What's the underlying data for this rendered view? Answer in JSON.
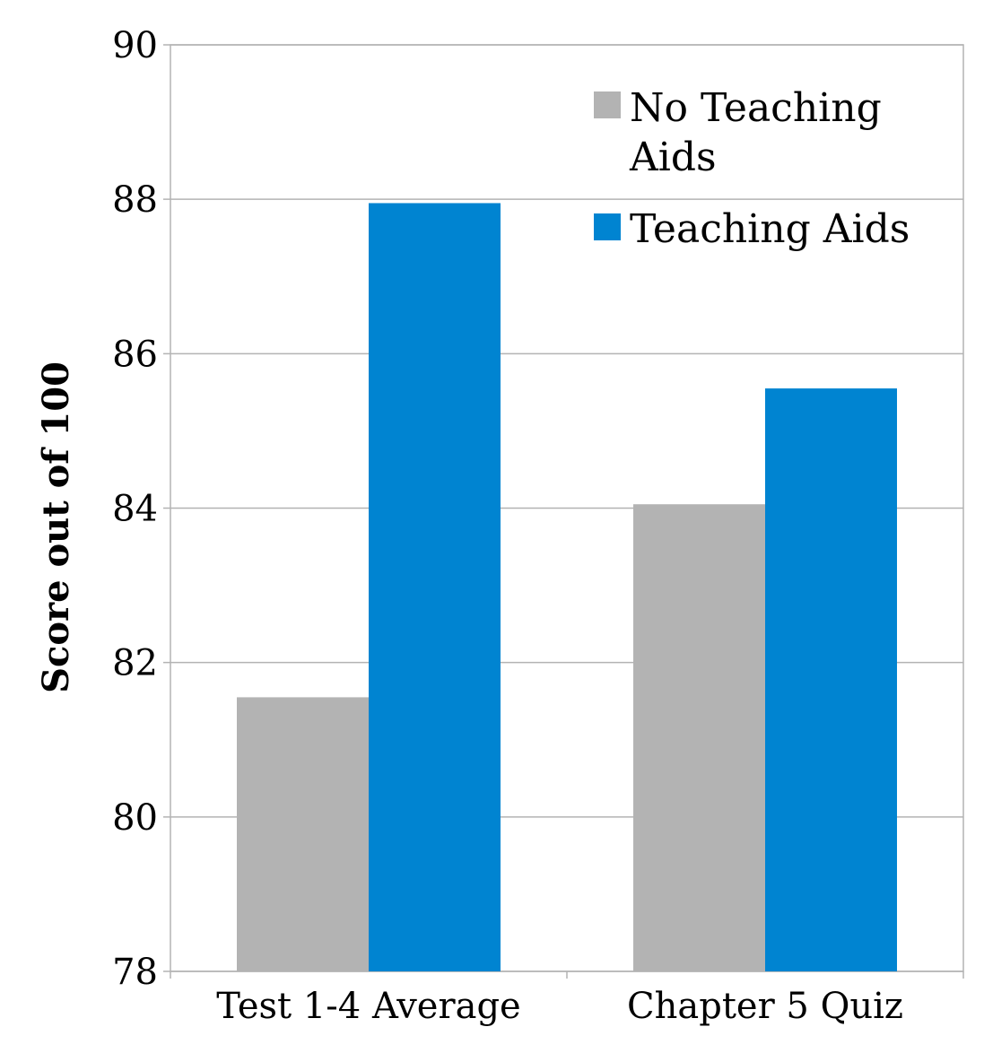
{
  "chart_data": {
    "type": "bar",
    "categories": [
      "Test 1-4 Average",
      "Chapter 5 Quiz"
    ],
    "series": [
      {
        "name": "No Teaching Aids",
        "color": "#b3b3b3",
        "values": [
          81.55,
          84.05
        ]
      },
      {
        "name": "Teaching Aids",
        "color": "#0084d1",
        "values": [
          87.95,
          85.55
        ]
      }
    ],
    "title": "",
    "xlabel": "",
    "ylabel": "Score out of 100",
    "ylim": [
      78,
      90
    ],
    "yticks": [
      "78",
      "80",
      "82",
      "84",
      "86",
      "88",
      "90"
    ],
    "grid": true,
    "legend_position": "top-right",
    "legend": {
      "item0_line1": "No Teaching",
      "item0_line2": "Aids",
      "item1": "Teaching Aids"
    }
  }
}
